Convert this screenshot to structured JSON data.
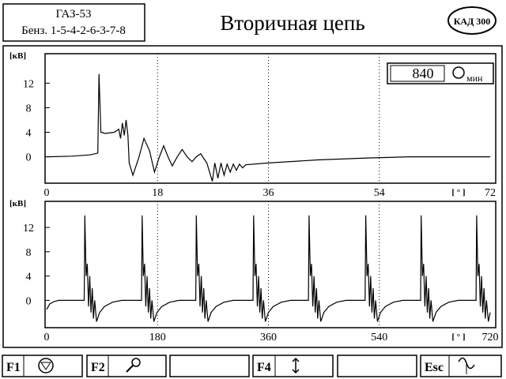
{
  "header": {
    "model": "ГАЗ-53",
    "engine": "Бенз. 1-5-4-2-6-3-7-8",
    "title": "Вторичная цепь",
    "logo": "КАД 300"
  },
  "rpm": {
    "value": 840,
    "unit": "мин"
  },
  "chart_data": [
    {
      "type": "line",
      "y_label": "[кВ]",
      "x_label": "[ ° ]",
      "xlim": [
        0,
        72
      ],
      "xticks": [
        0,
        18,
        36,
        54,
        72
      ],
      "ylim": [
        -4.3,
        16.8
      ],
      "yticks": [
        0,
        4,
        8,
        12
      ],
      "grid": true,
      "series": [
        {
          "color": "#000000",
          "x": [
            0,
            4,
            7,
            8.3,
            8.5,
            8.8,
            9.5,
            11,
            11.7,
            12,
            12.3,
            12.6,
            12.9,
            13.2,
            13.4,
            14,
            15,
            15.8,
            16.7,
            17.5,
            18.3,
            19,
            19.7,
            20.4,
            21.2,
            22,
            22.8,
            23.6,
            24.3,
            25,
            26,
            26.9,
            27.3,
            27.8,
            28.3,
            28.8,
            29.3,
            29.8,
            30.3,
            30.8,
            31.3,
            31.8,
            32.3,
            36,
            44,
            52,
            59,
            66,
            72
          ],
          "values": [
            0,
            0.1,
            0.3,
            0.6,
            13.5,
            4,
            3.8,
            4,
            4.5,
            3,
            5.5,
            3.5,
            6,
            3.5,
            -1,
            -3,
            0,
            3,
            1,
            -2.5,
            0,
            1.8,
            0,
            -1.5,
            0,
            1.2,
            0,
            -0.8,
            0,
            0.5,
            -1,
            -4,
            -1,
            -3.5,
            -1,
            -3,
            -1.2,
            -2.5,
            -1.2,
            -2.2,
            -1.2,
            -1.8,
            -1.3,
            -1,
            -0.5,
            -0.2,
            0,
            0,
            0
          ]
        }
      ]
    },
    {
      "type": "line",
      "y_label": "[кВ]",
      "x_label": "[ ° ]",
      "xlim": [
        0,
        720
      ],
      "xticks": [
        0,
        180,
        360,
        540,
        720
      ],
      "ylim": [
        -4.5,
        16.3
      ],
      "yticks": [
        0,
        4,
        8,
        12
      ],
      "grid": true,
      "series": [
        {
          "color": "#000000",
          "x": [
            0,
            5,
            12,
            20,
            61,
            62,
            64,
            66,
            68,
            70,
            72,
            74,
            76,
            78,
            81,
            86,
            94,
            107,
            122,
            154,
            155,
            157,
            159,
            161,
            163,
            165,
            167,
            169,
            171,
            174,
            179,
            187,
            200,
            215,
            242,
            243,
            245,
            247,
            249,
            251,
            253,
            255,
            257,
            259,
            262,
            267,
            275,
            288,
            303,
            335,
            336,
            338,
            340,
            342,
            344,
            346,
            348,
            350,
            352,
            355,
            360,
            368,
            381,
            396,
            425,
            426,
            428,
            430,
            432,
            434,
            436,
            438,
            440,
            442,
            445,
            450,
            458,
            471,
            486,
            517,
            518,
            520,
            522,
            524,
            526,
            528,
            530,
            532,
            534,
            537,
            542,
            550,
            563,
            578,
            607,
            608,
            610,
            612,
            614,
            616,
            618,
            620,
            622,
            624,
            627,
            632,
            640,
            653,
            668,
            697,
            698,
            700,
            702,
            704,
            706,
            708,
            710,
            712,
            714,
            717,
            720
          ],
          "values": [
            -1.5,
            -0.6,
            -0.2,
            0,
            0,
            14,
            4,
            6,
            -1,
            4,
            -2,
            2,
            -3,
            0,
            -3.5,
            -2,
            -1,
            -0.3,
            0,
            0,
            14,
            4,
            6,
            -1,
            4,
            -2,
            2,
            -3,
            0,
            -3.5,
            -2,
            -1,
            -0.3,
            0,
            0,
            14,
            4,
            6,
            -1,
            4,
            -2,
            2,
            -3,
            0,
            -3.5,
            -2,
            -1,
            -0.3,
            0,
            0,
            14,
            4,
            6,
            -1,
            4,
            -2,
            2,
            -3,
            0,
            -3.5,
            -2,
            -1,
            -0.3,
            0,
            0,
            14,
            4,
            6,
            -1,
            4,
            -2,
            2,
            -3,
            0,
            -3.5,
            -2,
            -1,
            -0.3,
            0,
            0,
            14,
            4,
            6,
            -1,
            4,
            -2,
            2,
            -3,
            0,
            -3.5,
            -2,
            -1,
            -0.3,
            0,
            0,
            14,
            4,
            6,
            -1,
            4,
            -2,
            2,
            -3,
            0,
            -3.5,
            -2,
            -1,
            -0.3,
            0,
            0,
            14,
            4,
            6,
            -1,
            4,
            -2,
            2,
            -3,
            0,
            -3.5,
            -2
          ]
        }
      ]
    }
  ],
  "function_keys": [
    "F1",
    "F2",
    "F4",
    "Esc"
  ]
}
